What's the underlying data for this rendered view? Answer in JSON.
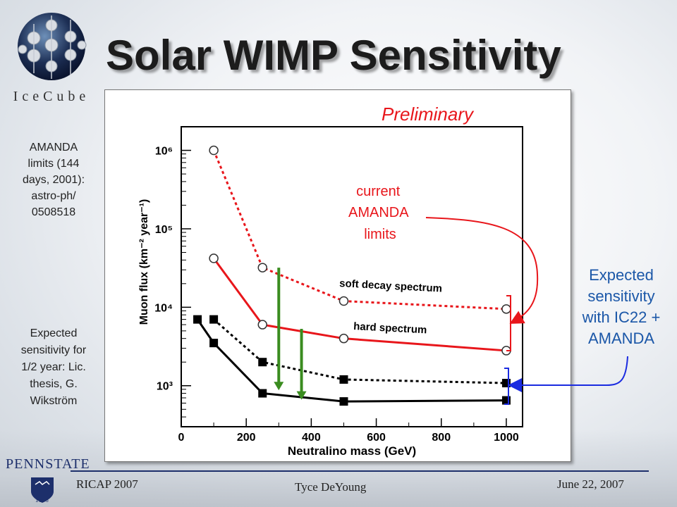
{
  "title": "Solar WIMP Sensitivity",
  "logo": {
    "text": "IceCube"
  },
  "left_notes": {
    "amanda": [
      "AMANDA",
      "limits (144",
      "days, 2001):",
      "astro-ph/",
      "0508518"
    ],
    "expected": [
      "Expected",
      "sensitivity for",
      "1/2 year: Lic.",
      "thesis, G.",
      "Wikström"
    ]
  },
  "right_note": [
    "Expected",
    "sensitivity",
    "with IC22  +",
    "AMANDA"
  ],
  "footer": {
    "left": "RICAP 2007",
    "center": "Tyce DeYoung",
    "right": "June 22, 2007",
    "institution_logo": "PENNSTATE",
    "seal_year": "1855"
  },
  "colors": {
    "limits": "#e8161b",
    "sensitivity": "#000000",
    "arrow_green": "#3a8c1f",
    "note_blue": "#1b57a8",
    "bracket_blue": "#1a2be0"
  },
  "chart_data": {
    "type": "line",
    "xlabel": "Neutralino mass (GeV)",
    "ylabel": "Muon flux (km⁻² year⁻¹)",
    "xlim": [
      0,
      1050
    ],
    "ylim": [
      300,
      2000000
    ],
    "yscale": "log",
    "xticks": [
      0,
      200,
      400,
      600,
      800,
      1000
    ],
    "yticks": [
      {
        "value": 1000,
        "label": "10³"
      },
      {
        "value": 10000,
        "label": "10⁴"
      },
      {
        "value": 100000,
        "label": "10⁵"
      },
      {
        "value": 1000000,
        "label": "10⁶"
      }
    ],
    "annotations": {
      "preliminary": "Preliminary",
      "current_limits": [
        "current",
        "AMANDA",
        "limits"
      ],
      "soft": "soft decay spectrum",
      "hard": "hard spectrum"
    },
    "series": [
      {
        "style": "dotted",
        "color": "#e8161b",
        "marker": "open-circle",
        "x": [
          100,
          250,
          500,
          1000
        ],
        "y": [
          1000000,
          32000,
          12000,
          9500
        ]
      },
      {
        "style": "solid",
        "color": "#e8161b",
        "marker": "open-circle",
        "x": [
          100,
          250,
          500,
          1000
        ],
        "y": [
          42000,
          6000,
          4000,
          2800
        ]
      },
      {
        "style": "dotted",
        "color": "#000000",
        "marker": "filled-square",
        "x": [
          100,
          250,
          500,
          1000
        ],
        "y": [
          7000,
          2000,
          1200,
          1080
        ]
      },
      {
        "style": "solid",
        "color": "#000000",
        "marker": "filled-square",
        "x": [
          50,
          100,
          250,
          500,
          1000
        ],
        "y": [
          7000,
          3500,
          800,
          630,
          650
        ]
      }
    ],
    "green_arrows": [
      {
        "x": 300,
        "from": 32000,
        "to": 950
      },
      {
        "x": 370,
        "from": 5300,
        "to": 720
      }
    ]
  }
}
